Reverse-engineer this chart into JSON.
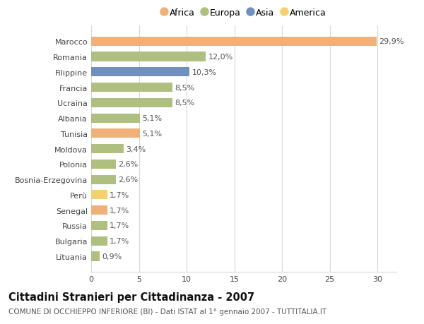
{
  "categories": [
    "Lituania",
    "Bulgaria",
    "Russia",
    "Senegal",
    "Perù",
    "Bosnia-Erzegovina",
    "Polonia",
    "Moldova",
    "Tunisia",
    "Albania",
    "Ucraina",
    "Francia",
    "Filippine",
    "Romania",
    "Marocco"
  ],
  "values": [
    0.9,
    1.7,
    1.7,
    1.7,
    1.7,
    2.6,
    2.6,
    3.4,
    5.1,
    5.1,
    8.5,
    8.5,
    10.3,
    12.0,
    29.9
  ],
  "labels": [
    "0,9%",
    "1,7%",
    "1,7%",
    "1,7%",
    "1,7%",
    "2,6%",
    "2,6%",
    "3,4%",
    "5,1%",
    "5,1%",
    "8,5%",
    "8,5%",
    "10,3%",
    "12,0%",
    "29,9%"
  ],
  "continents": [
    "Europa",
    "Europa",
    "Europa",
    "Africa",
    "America",
    "Europa",
    "Europa",
    "Europa",
    "Africa",
    "Europa",
    "Europa",
    "Europa",
    "Asia",
    "Europa",
    "Africa"
  ],
  "colors": {
    "Africa": "#F0B07A",
    "Europa": "#AEBF80",
    "Asia": "#7090C0",
    "America": "#F5D070"
  },
  "legend_order": [
    "Africa",
    "Europa",
    "Asia",
    "America"
  ],
  "title": "Cittadini Stranieri per Cittadinanza - 2007",
  "subtitle": "COMUNE DI OCCHIEPPO INFERIORE (BI) - Dati ISTAT al 1° gennaio 2007 - TUTTITALIA.IT",
  "xlim": [
    0,
    32
  ],
  "xticks": [
    0,
    5,
    10,
    15,
    20,
    25,
    30
  ],
  "background_color": "#ffffff",
  "plot_bg_color": "#ffffff",
  "grid_color": "#d8d8d8",
  "bar_height": 0.6,
  "label_fontsize": 8,
  "tick_fontsize": 8,
  "ytick_fontsize": 8,
  "title_fontsize": 10.5,
  "subtitle_fontsize": 7.5,
  "legend_fontsize": 9
}
